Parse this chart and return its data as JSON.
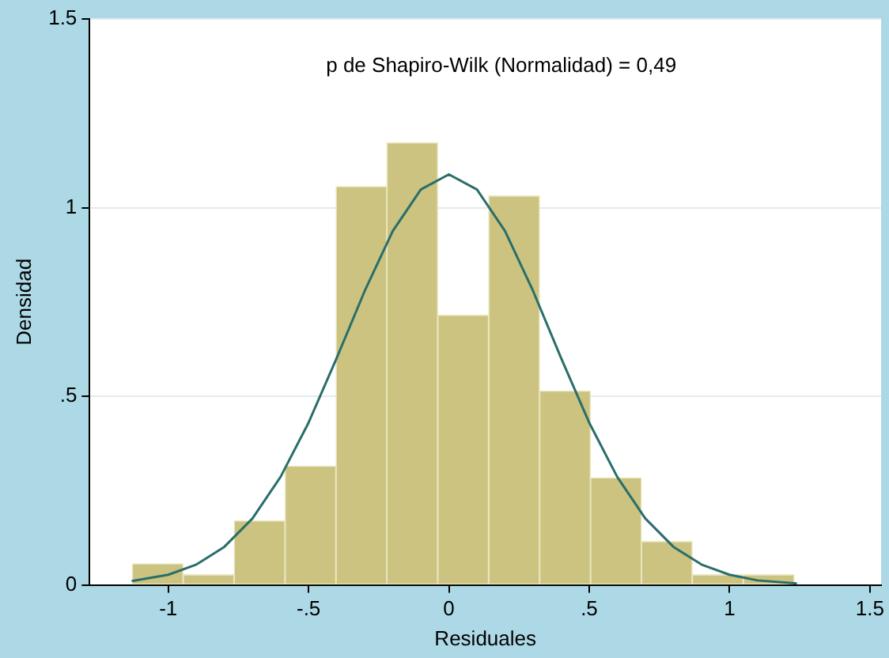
{
  "chart_data": {
    "type": "histogram",
    "xlabel": "Residuales",
    "ylabel": "Densidad",
    "annotations": [
      "p de Shapiro-Wilk (Normalidad) = 0,49"
    ],
    "bins": [
      -1.128,
      -0.947,
      -0.765,
      -0.584,
      -0.402,
      -0.221,
      -0.04,
      0.142,
      0.323,
      0.505,
      0.686,
      0.867,
      1.049,
      1.23
    ],
    "values": [
      0.056,
      0.027,
      0.17,
      0.315,
      1.056,
      1.172,
      0.715,
      1.031,
      0.514,
      0.284,
      0.115,
      0.027,
      0.027
    ],
    "color": "#cbc37f",
    "series": [
      {
        "type": "line",
        "color": "#2a6e6b",
        "x": [
          -1.13,
          -1.0,
          -0.9,
          -0.8,
          -0.7,
          -0.6,
          -0.5,
          -0.4,
          -0.3,
          -0.2,
          -0.1,
          0,
          0.1,
          0.2,
          0.3,
          0.4,
          0.5,
          0.6,
          0.7,
          0.8,
          0.9,
          1.0,
          1.1,
          1.24
        ],
        "values": [
          0.01,
          0.027,
          0.054,
          0.101,
          0.176,
          0.286,
          0.43,
          0.601,
          0.779,
          0.938,
          1.048,
          1.088,
          1.048,
          0.938,
          0.779,
          0.601,
          0.43,
          0.286,
          0.176,
          0.101,
          0.054,
          0.027,
          0.012,
          0.004
        ]
      }
    ],
    "xlim": [
      -1.28,
      1.54
    ],
    "xticks": [
      -1,
      {
        "value": -0.5,
        "label": "-.5"
      },
      0,
      {
        "value": 0.5,
        "label": ".5"
      },
      1,
      1.5
    ],
    "ylim": [
      0,
      1.5
    ],
    "yticks": [
      0,
      {
        "value": 0.5,
        "label": ".5"
      },
      1,
      1.5
    ],
    "grid": "y",
    "legend": false,
    "marker": "none"
  }
}
